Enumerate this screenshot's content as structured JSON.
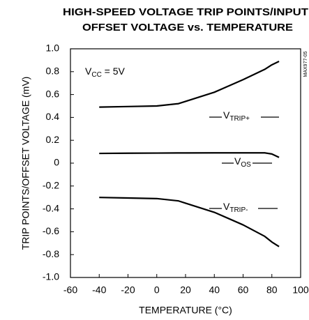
{
  "chart_data": {
    "type": "line",
    "title": [
      "HIGH-SPEED VOLTAGE TRIP POINTS/INPUT",
      "OFFSET VOLTAGE vs. TEMPERATURE"
    ],
    "x_label": "TEMPERATURE (°C)",
    "y_label": "TRIP POINTS/OFFSET VOLTAGE (mV)",
    "figure_id": "MAX977-05",
    "x": [
      -40,
      -20,
      0,
      15,
      20,
      40,
      60,
      75,
      80,
      85
    ],
    "series": [
      {
        "color": "#000000",
        "values": [
          0.49,
          0.495,
          0.5,
          0.52,
          0.54,
          0.62,
          0.73,
          0.82,
          0.86,
          0.89
        ]
      },
      {
        "color": "#000000",
        "values": [
          0.085,
          0.087,
          0.088,
          0.089,
          0.089,
          0.09,
          0.09,
          0.09,
          0.08,
          0.05
        ]
      },
      {
        "color": "#000000",
        "values": [
          -0.3,
          -0.305,
          -0.31,
          -0.33,
          -0.35,
          -0.43,
          -0.54,
          -0.64,
          -0.69,
          -0.73
        ]
      }
    ],
    "annotations": [
      {
        "base": "V",
        "sub": "CC",
        "tail": " = 5V"
      },
      {
        "base": "V",
        "sub": "TRIP+"
      },
      {
        "base": "V",
        "sub": "OS"
      },
      {
        "base": "V",
        "sub": "TRIP-"
      }
    ],
    "xlim": [
      -60,
      100
    ],
    "xticks": [
      -60,
      -40,
      -20,
      0,
      20,
      40,
      60,
      80,
      100
    ],
    "ylim": [
      -1,
      1
    ],
    "yticks": [
      {
        "value": -1,
        "label": "-1.0"
      },
      -0.8,
      -0.6,
      -0.4,
      -0.2,
      0,
      0.2,
      0.4,
      0.6,
      0.8,
      {
        "value": 1,
        "label": "1.0"
      }
    ],
    "grid": false
  }
}
